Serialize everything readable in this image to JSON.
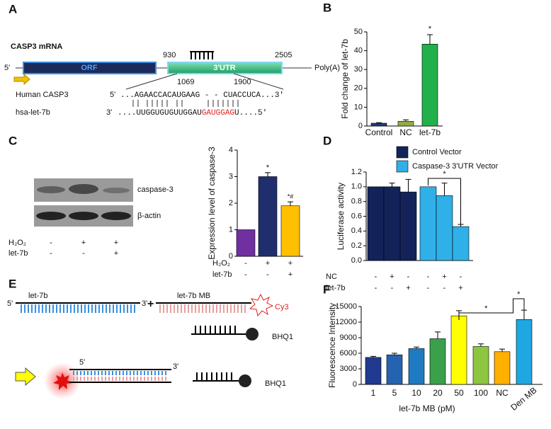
{
  "panel_labels": [
    "A",
    "B",
    "C",
    "D",
    "E",
    "F"
  ],
  "panel_a": {
    "title": "CASP3 mRNA",
    "five": "5'",
    "orf": "ORF",
    "utr": "3'UTR",
    "p930": "930",
    "p2505": "2505",
    "polya": "Poly(A)",
    "p1069": "1069",
    "p1900": "1900",
    "human": "Human CASP3",
    "human_end": "5'",
    "human_seq": "...AGAACCACAUGAAG - - CUACCUCA...3'",
    "let7b": "hsa-let-7b",
    "let7b_end": "3'",
    "let7b_seq1": "....UUGGUGUGUUGGAU",
    "let7b_seq2": "GAUGGAG",
    "let7b_seq3": "U....5'"
  },
  "panel_c_blot": {
    "band1": "caspase-3",
    "band2": "β-actin",
    "rows": [
      {
        "name": "H₂O₂",
        "values": [
          "-",
          "+",
          "+"
        ]
      },
      {
        "name": "let-7b",
        "values": [
          "-",
          "-",
          "+"
        ]
      }
    ]
  },
  "panel_e": {
    "strand": "let-7b",
    "s5": "5'",
    "s3": "3'",
    "plus": "+",
    "mb": "let-7b MB",
    "cy3": "Cy3",
    "bhq1": "BHQ1",
    "d5": "5'",
    "d3": "3'",
    "bhq1b": "BHQ1"
  },
  "chart_data": [
    {
      "type": "bar",
      "ylabel": "Fold change of let-7b",
      "categories": [
        "Control",
        "NC",
        "let-7b"
      ],
      "values": [
        1.5,
        2.5,
        43.5
      ],
      "errors": [
        0.3,
        0.8,
        5
      ],
      "colors": [
        "#1f3a78",
        "#8fae3a",
        "#22b04b"
      ],
      "ylim": [
        0,
        50
      ],
      "yticks": [
        0,
        10,
        20,
        30,
        40,
        50
      ],
      "annotations": [
        "*"
      ]
    },
    {
      "type": "bar",
      "ylabel": "Expression level of caspase-3",
      "values": [
        1,
        3,
        1.9
      ],
      "errors": [
        0,
        0.15,
        0.15
      ],
      "colors": [
        "#7030a0",
        "#1f2f6e",
        "#ffc000"
      ],
      "ylim": [
        0,
        4
      ],
      "yticks": [
        0,
        1,
        2,
        3,
        4
      ],
      "annotations": [
        "*",
        "*#"
      ],
      "conditions": [
        {
          "name": "H₂O₂",
          "values": [
            "-",
            "+",
            "+"
          ]
        },
        {
          "name": "let-7b",
          "values": [
            "-",
            "-",
            "+"
          ]
        }
      ]
    },
    {
      "type": "bar",
      "ylabel": "Luciferase activity",
      "series": [
        {
          "name": "Control Vector",
          "color": "#13235a",
          "values": [
            1.0,
            1.0,
            0.93,
            null,
            null,
            null
          ],
          "errors": [
            0,
            0.05,
            0.17,
            null,
            null,
            null
          ]
        },
        {
          "name": "Caspase-3 3'UTR Vector",
          "color": "#2fb0e8",
          "values": [
            null,
            null,
            null,
            1.0,
            0.88,
            0.46
          ],
          "errors": [
            null,
            null,
            null,
            0,
            0.17,
            0.03
          ]
        }
      ],
      "ylim": [
        0,
        1.2
      ],
      "yticks": [
        {
          "value": 0,
          "label": "0.0"
        },
        0.2,
        0.4,
        0.6,
        0.8,
        {
          "value": 1,
          "label": "1.0"
        },
        {
          "value": 1.2,
          "label": "1.2"
        }
      ],
      "annotations": [
        "*"
      ],
      "conditions": [
        {
          "name": "NC",
          "values": [
            "-",
            "+",
            "-",
            "-",
            "+",
            "-"
          ]
        },
        {
          "name": "let-7b",
          "values": [
            "-",
            "-",
            "+",
            "-",
            "-",
            "+"
          ]
        }
      ]
    },
    {
      "type": "bar",
      "ylabel": "Fluorescence Intensity",
      "xlabel": "let-7b MB (pM)",
      "categories": [
        "1",
        "5",
        "10",
        "20",
        "50",
        "100",
        "NC",
        "Den MB"
      ],
      "values": [
        5200,
        5700,
        6900,
        8800,
        13200,
        7300,
        6300,
        12500
      ],
      "errors": [
        200,
        300,
        300,
        1300,
        1000,
        500,
        500,
        1800
      ],
      "colors": [
        "#1f3a8f",
        "#2563b0",
        "#1e7bc2",
        "#3aa14a",
        "#ffff00",
        "#8dc63f",
        "#ffb000",
        "#1ea7e1"
      ],
      "ylim": [
        0,
        15000
      ],
      "yticks": [
        0,
        3000,
        6000,
        9000,
        12000,
        15000
      ],
      "annotations": [
        "*",
        "*"
      ]
    }
  ]
}
